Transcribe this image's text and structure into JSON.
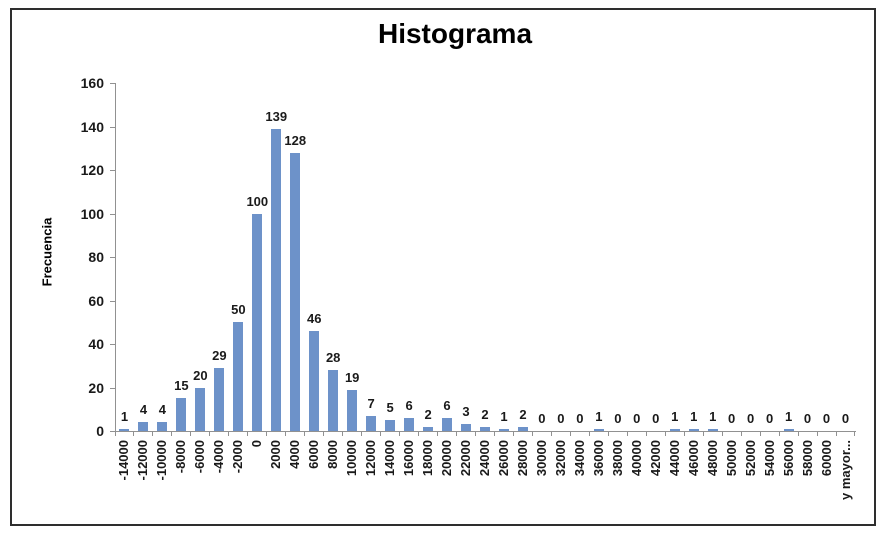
{
  "chart_data": {
    "type": "bar",
    "title": "Histograma",
    "ylabel": "Frecuencia",
    "xlabel": "",
    "categories": [
      "-14000",
      "-12000",
      "-10000",
      "-8000",
      "-6000",
      "-4000",
      "-2000",
      "0",
      "2000",
      "4000",
      "6000",
      "8000",
      "10000",
      "12000",
      "14000",
      "16000",
      "18000",
      "20000",
      "22000",
      "24000",
      "26000",
      "28000",
      "30000",
      "32000",
      "34000",
      "36000",
      "38000",
      "40000",
      "42000",
      "44000",
      "46000",
      "48000",
      "50000",
      "52000",
      "54000",
      "56000",
      "58000",
      "60000",
      "y mayor..."
    ],
    "values": [
      1,
      4,
      4,
      15,
      20,
      29,
      50,
      100,
      139,
      128,
      46,
      28,
      19,
      7,
      5,
      6,
      2,
      6,
      3,
      2,
      1,
      2,
      0,
      0,
      0,
      1,
      0,
      0,
      0,
      1,
      1,
      1,
      0,
      0,
      0,
      1,
      0,
      0,
      0
    ],
    "ylim": [
      0,
      160
    ],
    "ytick_step": 20,
    "grid": false,
    "legend_position": "none",
    "data_labels": true,
    "colors": {
      "bar": "#6d92c9",
      "axis": "#919191",
      "text": "#1a1a1a",
      "title": "#000000",
      "frame_border": "#2e2e2e",
      "background": "#ffffff"
    }
  }
}
